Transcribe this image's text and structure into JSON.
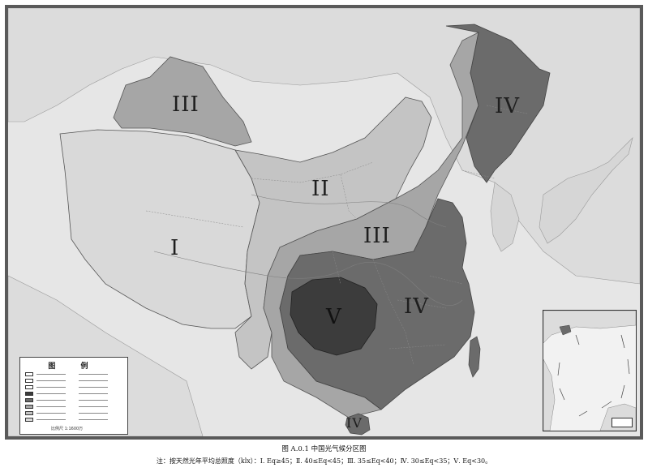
{
  "map": {
    "zones": [
      {
        "id": "I",
        "label": "I"
      },
      {
        "id": "II",
        "label": "II"
      },
      {
        "id": "III-north",
        "label": "III"
      },
      {
        "id": "III-central",
        "label": "III"
      },
      {
        "id": "IV-northeast",
        "label": "IV"
      },
      {
        "id": "IV-south",
        "label": "IV"
      },
      {
        "id": "IV-hainan",
        "label": "IV"
      },
      {
        "id": "V",
        "label": "V"
      }
    ],
    "colors": {
      "sea": "#e6e6e6",
      "land_outside": "#dcdcdc",
      "zone_I": "#d9d9d9",
      "zone_II": "#c4c4c4",
      "zone_III": "#a6a6a6",
      "zone_IV": "#6b6b6b",
      "zone_V": "#3c3c3c"
    }
  },
  "legend": {
    "title": "图 例",
    "scale": "比例尺 1:1600万"
  },
  "caption": "图 A.0.1  中国光气候分区图",
  "note": "注：按天然光年平均总照度（klx）：Ⅰ. Eq≥45；Ⅱ. 40≤Eq<45；Ⅲ. 35≤Eq<40；Ⅳ. 30≤Eq<35；Ⅴ. Eq<30。"
}
